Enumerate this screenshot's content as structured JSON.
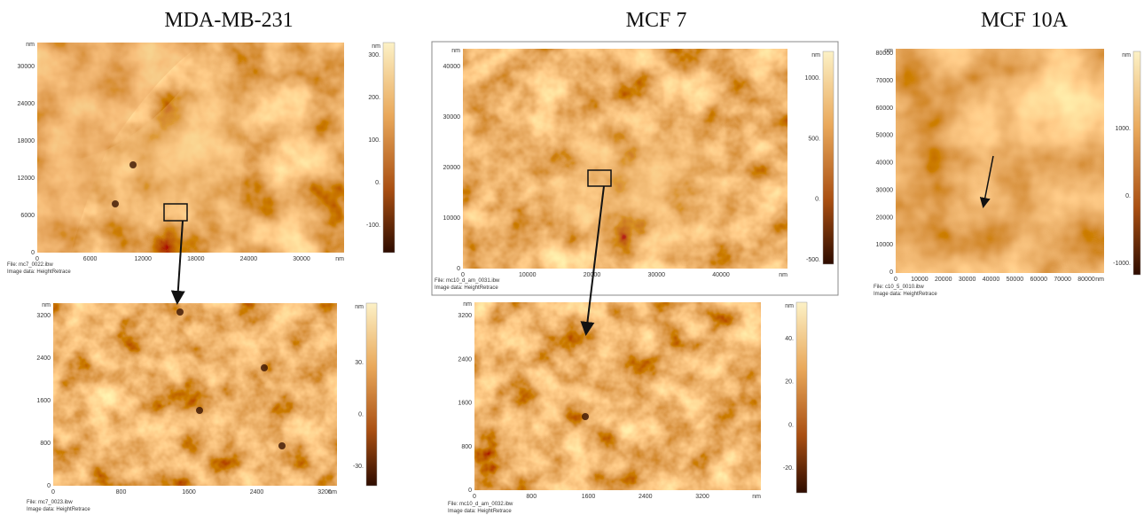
{
  "titles": [
    "MDA-MB-231",
    "MCF 7",
    "MCF 10A"
  ],
  "panels": [
    {
      "y_unit": "nm",
      "y_ticks": [
        "30000",
        "24000",
        "18000",
        "12000",
        "6000",
        "0"
      ],
      "x_ticks": [
        "0",
        "6000",
        "12000",
        "18000",
        "24000",
        "30000"
      ],
      "x_unit": "nm",
      "colorbar_unit": "nm",
      "colorbar_ticks": [
        "300.",
        "200.",
        "100.",
        "0.",
        "-100."
      ],
      "file": "File: mc7_0022.ibw",
      "image_data": "Image data: HeightRetrace"
    },
    {
      "y_unit": "nm",
      "y_ticks": [
        "3200",
        "2400",
        "1600",
        "800",
        "0"
      ],
      "x_ticks": [
        "0",
        "800",
        "1600",
        "2400",
        "3200"
      ],
      "x_unit": "nm",
      "colorbar_unit": "nm",
      "colorbar_ticks": [
        "30.",
        "0.",
        "-30."
      ],
      "file": "File: mc7_0023.ibw",
      "image_data": "Image data: HeightRetrace"
    },
    {
      "y_unit": "nm",
      "y_ticks": [
        "40000",
        "30000",
        "20000",
        "10000",
        "0"
      ],
      "x_ticks": [
        "0",
        "10000",
        "20000",
        "30000",
        "40000"
      ],
      "x_unit": "nm",
      "colorbar_unit": "nm",
      "colorbar_ticks": [
        "1000.",
        "500.",
        "0.",
        "-500."
      ],
      "file": "File: mc10_d_am_0031.ibw",
      "image_data": "Image data: HeightRetrace"
    },
    {
      "y_unit": "nm",
      "y_ticks": [
        "3200",
        "2400",
        "1600",
        "800",
        "0"
      ],
      "x_ticks": [
        "0",
        "800",
        "1600",
        "2400",
        "3200"
      ],
      "x_unit": "nm",
      "colorbar_unit": "nm",
      "colorbar_ticks": [
        "40.",
        "20.",
        "0.",
        "-20."
      ],
      "file": "File: mc10_d_am_0032.ibw",
      "image_data": "Image data: HeightRetrace"
    },
    {
      "y_unit": "nm",
      "y_ticks": [
        "80000",
        "70000",
        "60000",
        "50000",
        "40000",
        "30000",
        "20000",
        "10000",
        "0"
      ],
      "x_ticks": [
        "0",
        "10000",
        "20000",
        "30000",
        "40000",
        "50000",
        "60000",
        "70000",
        "80000"
      ],
      "x_unit": "nm",
      "colorbar_unit": "nm",
      "colorbar_ticks": [
        "1000.",
        "0.",
        "-1000."
      ],
      "file": "File: c10_5_0010.ibw",
      "image_data": "Image data: HeightRetrace"
    }
  ]
}
